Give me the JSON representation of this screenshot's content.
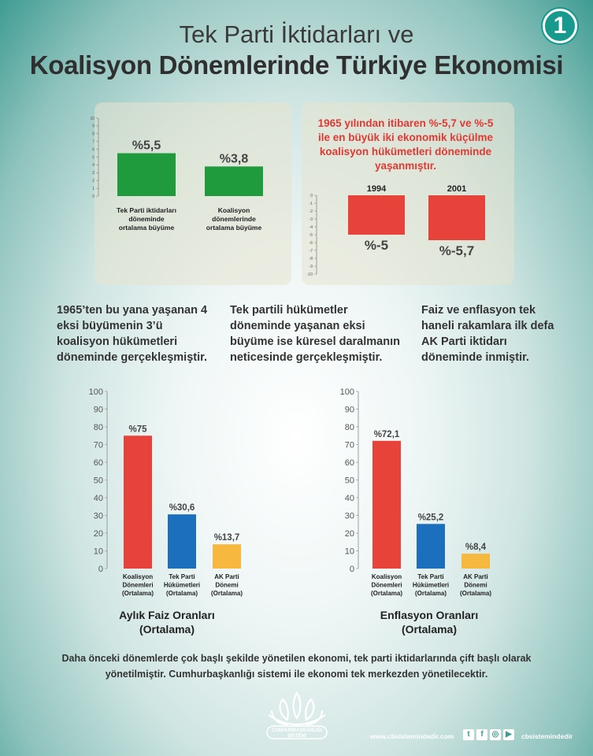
{
  "badge": "1",
  "title_line1": "Tek Parti İktidarları ve",
  "title_line2": "Koalisyon Dönemlerinde Türkiye Ekonomisi",
  "colors": {
    "green": "#1f9b3e",
    "red": "#e8433a",
    "blue": "#1b6fbd",
    "yellow": "#f6b83f",
    "teal": "#179a8e"
  },
  "note_1965": "1965 yılından itibaren %-5,7 ve %-5 ile en büyük iki ekonomik küçülme koalisyon hükümetleri döneminde yaşanmıştır.",
  "columns": [
    "1965’ten bu yana yaşanan 4 eksi büyümenin 3’ü koalisyon hükümetleri döneminde gerçekleşmiştir.",
    "Tek partili hükümetler döneminde yaşanan eksi büyüme ise küresel daralmanın neticesinde gerçekleşmiştir.",
    "Faiz ve enflasyon tek haneli rakamlara ilk defa AK Parti iktidarı döneminde inmiştir."
  ],
  "footer_text": "Daha önceki dönemlerde çok başlı şekilde yönetilen ekonomi, tek parti iktidarlarında çift başlı olarak yönetilmiştir. Cumhurbaşkanlığı sistemi ile ekonomi tek merkezden yönetilecektir.",
  "logo_text_1": "CUMHURBAŞKANLIĞI",
  "logo_text_2": "SİSTEMİ",
  "site_left": "www.cbsistemindedir.com",
  "site_right": "cbsistemindedir",
  "social_icons": [
    "twitter-icon",
    "facebook-icon",
    "instagram-icon",
    "youtube-icon"
  ],
  "chart_data": [
    {
      "type": "bar",
      "categories": [
        [
          "Tek Parti iktidarları",
          "döneminde",
          "ortalama büyüme"
        ],
        [
          "Koalisyon",
          "dönemlerinde",
          "ortalama büyüme"
        ]
      ],
      "values": [
        5.5,
        3.8
      ],
      "value_labels": [
        "%5,5",
        "%3,8"
      ],
      "ylim": [
        0,
        10
      ],
      "yticks": [
        0,
        1,
        2,
        3,
        4,
        5,
        6,
        7,
        8,
        9,
        10
      ],
      "color": "#1f9b3e"
    },
    {
      "type": "bar",
      "categories": [
        "1994",
        "2001"
      ],
      "values": [
        -5,
        -5.7
      ],
      "value_labels": [
        "%-5",
        "%-5,7"
      ],
      "ylim": [
        -10,
        0
      ],
      "yticks": [
        0,
        -1,
        -2,
        -3,
        -4,
        -5,
        -6,
        -7,
        -8,
        -9,
        -10
      ],
      "color": "#e8433a"
    },
    {
      "type": "bar",
      "title": [
        "Aylık Faiz Oranları",
        "(Ortalama)"
      ],
      "categories": [
        [
          "Koalisyon",
          "Dönemleri",
          "(Ortalama)"
        ],
        [
          "Tek Parti",
          "Hükümetleri",
          "(Ortalama)"
        ],
        [
          "AK Parti",
          "Dönemi",
          "(Ortalama)"
        ]
      ],
      "values": [
        75,
        30.6,
        13.7
      ],
      "value_labels": [
        "%75",
        "%30,6",
        "%13,7"
      ],
      "colors": [
        "#e8433a",
        "#1b6fbd",
        "#f6b83f"
      ],
      "ylim": [
        0,
        100
      ],
      "yticks": [
        0,
        10,
        20,
        30,
        40,
        50,
        60,
        70,
        80,
        90,
        100
      ]
    },
    {
      "type": "bar",
      "title": [
        "Enflasyon Oranları",
        "(Ortalama)"
      ],
      "categories": [
        [
          "Koalisyon",
          "Dönemleri",
          "(Ortalama)"
        ],
        [
          "Tek Parti",
          "Hükümetleri",
          "(Ortalama)"
        ],
        [
          "AK Parti",
          "Dönemi",
          "(Ortalama)"
        ]
      ],
      "values": [
        72.1,
        25.2,
        8.4
      ],
      "value_labels": [
        "%72,1",
        "%25,2",
        "%8,4"
      ],
      "colors": [
        "#e8433a",
        "#1b6fbd",
        "#f6b83f"
      ],
      "ylim": [
        0,
        100
      ],
      "yticks": [
        0,
        10,
        20,
        30,
        40,
        50,
        60,
        70,
        80,
        90,
        100
      ]
    }
  ]
}
